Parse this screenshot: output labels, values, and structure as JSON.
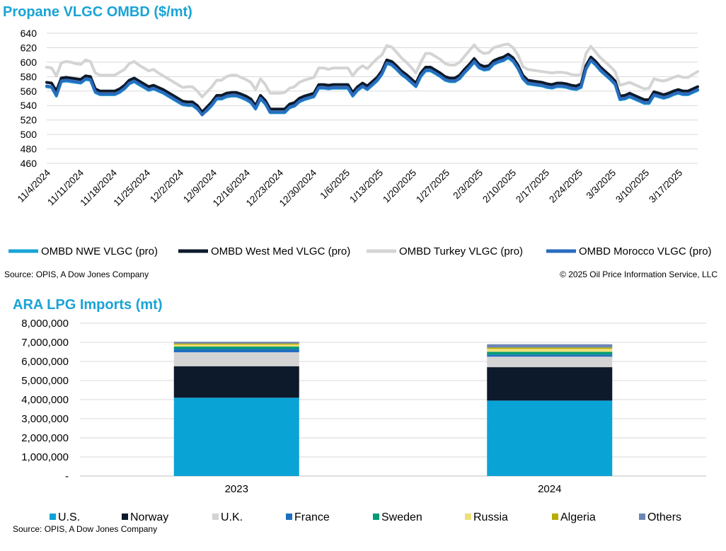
{
  "charts": [
    {
      "title": "Propane VLGC OMBD ($/mt)"
    },
    {
      "title": "ARA LPG Imports (mt)"
    }
  ],
  "chart_data": [
    {
      "type": "line",
      "title": "Propane VLGC OMBD ($/mt)",
      "ylim": [
        460,
        640
      ],
      "yticks": [
        460,
        480,
        500,
        520,
        540,
        560,
        580,
        600,
        620,
        640
      ],
      "ylabel": "",
      "xlabel": "",
      "x_tick_labels": [
        "11/4/2024",
        "11/11/2024",
        "11/18/2024",
        "11/25/2024",
        "12/2/2024",
        "12/9/2024",
        "12/16/2024",
        "12/23/2024",
        "12/30/2024",
        "1/6/2025",
        "1/13/2025",
        "1/20/2025",
        "1/27/2025",
        "2/3/2025",
        "2/10/2025",
        "2/17/2025",
        "2/24/2025",
        "3/3/2025",
        "3/10/2025",
        "3/17/2025"
      ],
      "x_start": "11/4/2024",
      "x_end": "3/21/2025",
      "grid": true,
      "legend_position": "bottom",
      "series": [
        {
          "name": "OMBD NWE VLGC (pro)",
          "color": "#1aa3d6",
          "values": [
            566,
            565,
            553,
            573,
            574,
            573,
            572,
            571,
            576,
            575,
            558,
            555,
            555,
            555,
            555,
            558,
            563,
            570,
            573,
            569,
            565,
            561,
            563,
            560,
            557,
            553,
            549,
            545,
            541,
            540,
            540,
            535,
            528,
            533,
            540,
            549,
            549,
            552,
            553,
            553,
            551,
            548,
            544,
            535,
            549,
            542,
            530,
            530,
            530,
            530,
            537,
            539,
            545,
            548,
            550,
            552,
            564,
            564,
            563,
            564,
            564,
            564,
            564,
            553,
            561,
            566,
            562,
            568,
            574,
            583,
            598,
            596,
            590,
            583,
            578,
            572,
            566,
            580,
            588,
            588,
            584,
            580,
            575,
            573,
            573,
            577,
            585,
            592,
            600,
            592,
            589,
            590,
            597,
            600,
            602,
            606,
            601,
            591,
            577,
            570,
            569,
            568,
            567,
            565,
            564,
            566,
            566,
            565,
            563,
            562,
            565,
            590,
            602,
            596,
            588,
            582,
            576,
            569,
            548,
            549,
            552,
            549,
            546,
            543,
            543,
            554,
            552,
            550,
            552,
            555,
            557,
            555,
            555,
            558,
            561
          ]
        },
        {
          "name": "OMBD West Med VLGC (pro)",
          "color": "#0d1a2b",
          "values": [
            572,
            571,
            560,
            578,
            579,
            578,
            577,
            576,
            581,
            580,
            563,
            560,
            560,
            560,
            560,
            563,
            568,
            575,
            578,
            574,
            570,
            566,
            568,
            565,
            562,
            558,
            554,
            550,
            546,
            545,
            545,
            540,
            531,
            538,
            545,
            554,
            554,
            557,
            558,
            558,
            556,
            553,
            549,
            540,
            554,
            547,
            535,
            535,
            535,
            535,
            542,
            544,
            550,
            553,
            555,
            557,
            569,
            569,
            568,
            569,
            569,
            569,
            569,
            558,
            566,
            571,
            567,
            573,
            579,
            588,
            603,
            601,
            595,
            588,
            583,
            577,
            571,
            585,
            593,
            593,
            589,
            585,
            580,
            578,
            578,
            582,
            590,
            597,
            605,
            597,
            594,
            595,
            602,
            605,
            607,
            611,
            606,
            596,
            582,
            575,
            574,
            573,
            572,
            570,
            569,
            571,
            571,
            570,
            568,
            567,
            570,
            595,
            607,
            601,
            593,
            587,
            581,
            574,
            553,
            554,
            557,
            554,
            551,
            548,
            548,
            559,
            557,
            555,
            557,
            560,
            562,
            560,
            560,
            563,
            566
          ]
        },
        {
          "name": "OMBD Turkey VLGC (pro)",
          "color": "#d4d4d4",
          "values": [
            593,
            592,
            581,
            599,
            601,
            600,
            598,
            597,
            603,
            601,
            585,
            582,
            582,
            582,
            582,
            586,
            590,
            598,
            601,
            596,
            592,
            588,
            590,
            585,
            581,
            577,
            573,
            569,
            565,
            566,
            566,
            560,
            552,
            559,
            566,
            575,
            575,
            580,
            582,
            582,
            579,
            576,
            572,
            562,
            577,
            569,
            557,
            557,
            557,
            558,
            564,
            566,
            572,
            575,
            577,
            579,
            592,
            592,
            590,
            592,
            592,
            592,
            592,
            581,
            590,
            595,
            591,
            598,
            605,
            610,
            623,
            621,
            614,
            606,
            600,
            593,
            585,
            600,
            612,
            612,
            608,
            604,
            598,
            596,
            596,
            600,
            608,
            616,
            624,
            616,
            612,
            613,
            620,
            622,
            624,
            625,
            620,
            610,
            594,
            590,
            589,
            588,
            587,
            586,
            585,
            586,
            586,
            585,
            583,
            582,
            583,
            612,
            622,
            614,
            606,
            600,
            594,
            587,
            568,
            570,
            572,
            569,
            566,
            563,
            564,
            577,
            575,
            574,
            576,
            579,
            581,
            579,
            579,
            583,
            587
          ]
        },
        {
          "name": "OMBD Morocco VLGC (pro)",
          "color": "#2a6cbf",
          "values": [
            567,
            566,
            554,
            574,
            575,
            574,
            573,
            572,
            577,
            576,
            559,
            556,
            556,
            556,
            556,
            559,
            564,
            571,
            574,
            570,
            566,
            562,
            564,
            561,
            558,
            554,
            550,
            546,
            542,
            541,
            541,
            536,
            527,
            534,
            541,
            550,
            550,
            553,
            554,
            554,
            552,
            549,
            545,
            536,
            550,
            543,
            531,
            531,
            531,
            531,
            538,
            540,
            546,
            549,
            551,
            553,
            565,
            565,
            564,
            565,
            565,
            565,
            565,
            554,
            562,
            567,
            563,
            569,
            575,
            584,
            599,
            597,
            591,
            584,
            579,
            573,
            567,
            581,
            589,
            589,
            585,
            581,
            576,
            574,
            574,
            578,
            586,
            593,
            601,
            593,
            590,
            591,
            598,
            601,
            603,
            607,
            602,
            592,
            578,
            571,
            570,
            569,
            568,
            566,
            565,
            567,
            567,
            566,
            564,
            563,
            566,
            591,
            603,
            597,
            589,
            583,
            577,
            570,
            549,
            550,
            553,
            550,
            547,
            544,
            544,
            555,
            553,
            551,
            553,
            556,
            558,
            556,
            556,
            559,
            562
          ]
        }
      ]
    },
    {
      "type": "bar",
      "stacked": true,
      "title": "ARA LPG Imports (mt)",
      "categories": [
        "2023",
        "2024"
      ],
      "ylim": [
        0,
        8000000
      ],
      "yticks": [
        0,
        1000000,
        2000000,
        3000000,
        4000000,
        5000000,
        6000000,
        7000000,
        8000000
      ],
      "ytick_labels": [
        "-",
        "1,000,000",
        "2,000,000",
        "3,000,000",
        "4,000,000",
        "5,000,000",
        "6,000,000",
        "7,000,000",
        "8,000,000"
      ],
      "grid": true,
      "legend_position": "bottom",
      "series": [
        {
          "name": "U.S.",
          "color": "#0aa3d6",
          "values": [
            4100000,
            3950000
          ]
        },
        {
          "name": "Norway",
          "color": "#0d1a2b",
          "values": [
            1650000,
            1750000
          ]
        },
        {
          "name": "U.K.",
          "color": "#d4d4d4",
          "values": [
            730000,
            550000
          ]
        },
        {
          "name": "France",
          "color": "#1f6fbf",
          "values": [
            170000,
            110000
          ]
        },
        {
          "name": "Sweden",
          "color": "#009b77",
          "values": [
            130000,
            140000
          ]
        },
        {
          "name": "Russia",
          "color": "#ede07a",
          "values": [
            100000,
            160000
          ]
        },
        {
          "name": "Algeria",
          "color": "#b8ab00",
          "values": [
            60000,
            70000
          ]
        },
        {
          "name": "Others",
          "color": "#6d86b4",
          "values": [
            90000,
            170000
          ]
        }
      ]
    }
  ],
  "sources": {
    "top_left": "Source: OPIS, A Dow Jones Company",
    "top_right": "© 2025 Oil Price Information Service, LLC",
    "bottom_left": "Source: OPIS, A Dow Jones Company"
  }
}
